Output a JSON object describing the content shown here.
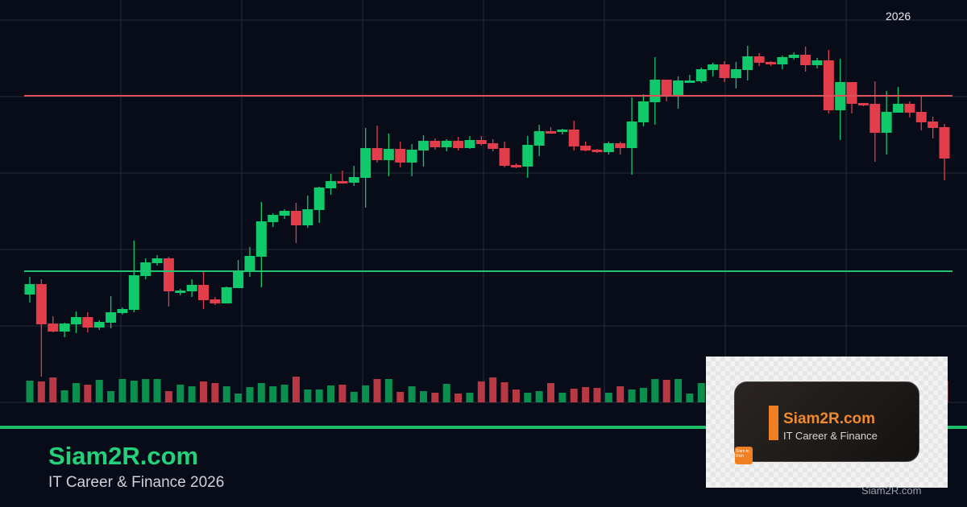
{
  "chart_data": {
    "type": "candlestick",
    "title": "",
    "xlabel": "",
    "ylabel": "",
    "x_tick_labels": [
      "2026"
    ],
    "ylim": [
      0,
      100
    ],
    "grid": true,
    "colors": {
      "up": "#10c96b",
      "down": "#e23d4b",
      "volume_up": "#0b8f4f",
      "volume_down": "#b83843",
      "background": "#080c18",
      "grid": "#262b3a"
    },
    "horizontal_lines": [
      {
        "level": 76.2,
        "color": "#e0505a"
      },
      {
        "level": 32.6,
        "color": "#22c472"
      }
    ],
    "ohlc": [
      [
        26.8,
        31.2,
        24.8,
        29.4
      ],
      [
        29.4,
        30.6,
        6.4,
        19.4
      ],
      [
        19.6,
        21.4,
        17.4,
        17.6
      ],
      [
        17.6,
        19.8,
        16.2,
        19.6
      ],
      [
        19.4,
        22.6,
        17.2,
        21.2
      ],
      [
        21.2,
        22.4,
        17.4,
        18.6
      ],
      [
        18.6,
        20.4,
        18,
        20
      ],
      [
        19.8,
        26.4,
        18.4,
        22.4
      ],
      [
        22.2,
        23.6,
        21.8,
        23.2
      ],
      [
        23,
        40.2,
        22.4,
        31.6
      ],
      [
        31.4,
        35.8,
        30.6,
        34.8
      ],
      [
        34.6,
        36.6,
        34,
        35.8
      ],
      [
        35.8,
        36.2,
        23.8,
        27.6
      ],
      [
        27.2,
        28.2,
        26.6,
        27.8
      ],
      [
        27.6,
        30.6,
        26.2,
        29.2
      ],
      [
        29.2,
        32.4,
        23.2,
        25.4
      ],
      [
        25.6,
        26.2,
        24.2,
        24.6
      ],
      [
        24.6,
        28.8,
        24.6,
        28.6
      ],
      [
        28.4,
        35.4,
        28.4,
        32.6
      ],
      [
        32.6,
        38.6,
        31.2,
        36.4
      ],
      [
        36.2,
        49.8,
        28.6,
        45
      ],
      [
        44.8,
        47,
        43.6,
        46.6
      ],
      [
        46.4,
        48,
        45.6,
        47.6
      ],
      [
        47.6,
        49.6,
        39.6,
        44
      ],
      [
        44,
        51.4,
        43.4,
        48
      ],
      [
        47.8,
        53.6,
        44.6,
        53.4
      ],
      [
        53.2,
        56.8,
        51.6,
        55
      ],
      [
        55,
        57.6,
        54.4,
        54.4
      ],
      [
        54.6,
        58.8,
        53.8,
        56
      ],
      [
        55.8,
        68.2,
        48.4,
        63.2
      ],
      [
        63.2,
        68.8,
        59.6,
        60.2
      ],
      [
        60.2,
        66.8,
        56.2,
        63
      ],
      [
        63,
        64.8,
        58.4,
        59.6
      ],
      [
        59.6,
        64.2,
        56.2,
        62.8
      ],
      [
        62.6,
        66.4,
        58.6,
        65
      ],
      [
        65,
        65.6,
        62.8,
        63.4
      ],
      [
        63.4,
        65.4,
        62.4,
        65
      ],
      [
        65,
        66,
        62.6,
        63.2
      ],
      [
        63.2,
        66.2,
        63,
        65.2
      ],
      [
        65.2,
        66.2,
        63.8,
        64.2
      ],
      [
        64.4,
        65.4,
        62.4,
        63
      ],
      [
        63.2,
        64.8,
        58.4,
        58.8
      ],
      [
        59,
        59.4,
        58.2,
        58.4
      ],
      [
        58.6,
        66.2,
        55.8,
        64
      ],
      [
        63.8,
        69,
        61.2,
        67.4
      ],
      [
        67.4,
        68.4,
        66.8,
        66.8
      ],
      [
        67.2,
        68,
        66.6,
        67.8
      ],
      [
        67.8,
        70,
        62.6,
        63.6
      ],
      [
        63.8,
        64.8,
        62.4,
        62.6
      ],
      [
        62.8,
        63,
        62,
        62.2
      ],
      [
        62.2,
        64.8,
        61.6,
        64.4
      ],
      [
        64.4,
        64.8,
        61.6,
        63.2
      ],
      [
        63.2,
        75.8,
        56.6,
        69.8
      ],
      [
        69.6,
        76.6,
        68.6,
        74.8
      ],
      [
        74.6,
        85.8,
        69,
        80.2
      ],
      [
        80.2,
        80.2,
        74.8,
        76.2
      ],
      [
        76.2,
        81,
        73,
        80
      ],
      [
        79.4,
        81.4,
        79.4,
        80
      ],
      [
        79.8,
        83.2,
        79.4,
        82.8
      ],
      [
        82.6,
        84.4,
        81,
        84
      ],
      [
        84,
        84.8,
        79.6,
        80.6
      ],
      [
        80.6,
        84.6,
        78,
        82.8
      ],
      [
        82.6,
        88.6,
        80,
        86
      ],
      [
        86,
        86.8,
        83.6,
        84.4
      ],
      [
        84.6,
        84.8,
        83.6,
        84
      ],
      [
        84,
        86.2,
        82.8,
        85.8
      ],
      [
        85.6,
        87,
        85.2,
        86.4
      ],
      [
        86.4,
        88.4,
        82.2,
        83.8
      ],
      [
        83.8,
        85.6,
        83,
        85
      ],
      [
        85,
        87.6,
        71.8,
        72.6
      ],
      [
        72.6,
        85.4,
        65.2,
        79.6
      ],
      [
        79.6,
        79.6,
        71.8,
        74.2
      ],
      [
        74.4,
        74.4,
        73.6,
        73.8
      ],
      [
        74.2,
        79.8,
        59.8,
        67
      ],
      [
        67,
        77.4,
        61.6,
        72.2
      ],
      [
        72,
        78.4,
        72,
        74.2
      ],
      [
        74.2,
        74.8,
        70.8,
        72
      ],
      [
        72.2,
        76,
        67.6,
        69.6
      ],
      [
        69.8,
        71,
        65.6,
        68.2
      ],
      [
        68.4,
        69.2,
        55.2,
        60.6
      ]
    ],
    "volume": [
      27,
      26,
      31,
      15,
      24,
      22,
      28,
      14,
      29,
      27,
      29,
      29,
      14,
      22,
      20,
      26,
      24,
      20,
      11,
      19,
      24,
      20,
      22,
      32,
      16,
      16,
      21,
      22,
      13,
      21,
      29,
      29,
      13,
      20,
      14,
      12,
      23,
      11,
      12,
      26,
      31,
      25,
      16,
      12,
      14,
      24,
      12,
      17,
      19,
      18,
      12,
      20,
      16,
      18,
      29,
      28,
      29,
      11,
      24,
      null,
      null,
      null,
      null,
      null,
      null,
      null,
      null,
      null,
      null,
      null,
      null,
      null,
      null,
      null,
      null,
      null,
      null,
      null,
      null,
      27
    ]
  },
  "footer": {
    "brand": "Siam2R.com",
    "tagline": "IT Career & Finance 2026"
  },
  "logo": {
    "title": "Siam2R.com",
    "subtitle": "IT Career & Finance",
    "badge": "Siam to Rich",
    "watermark": "Siam2R.com",
    "accent": "#f07f22"
  }
}
